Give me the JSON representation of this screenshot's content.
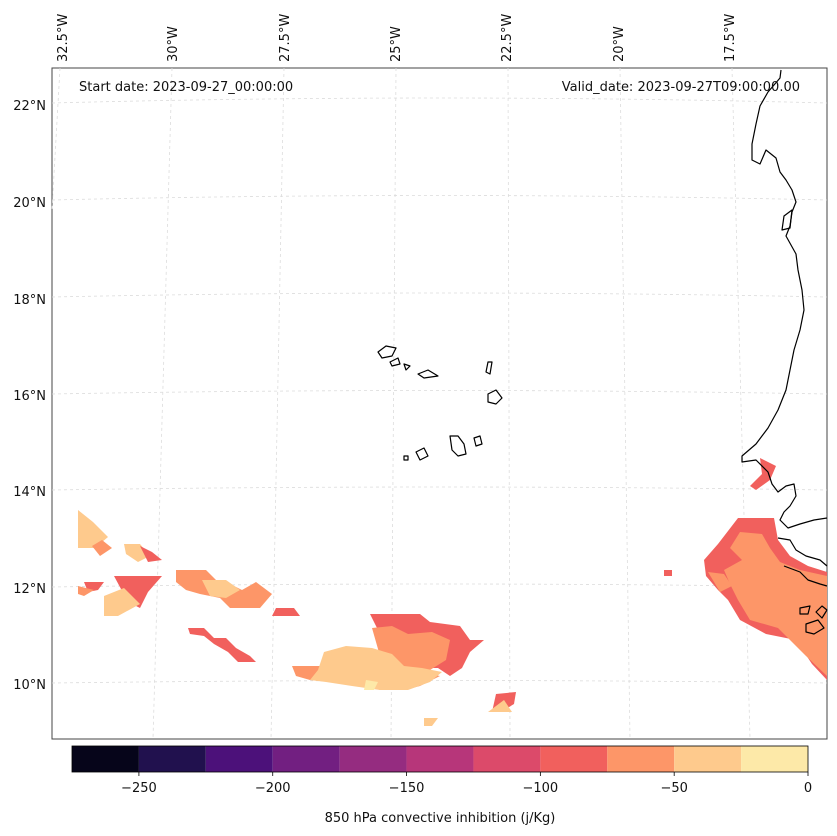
{
  "map": {
    "start_label": "Start date: 2023-09-27_00:00:00",
    "valid_label": "Valid_date: 2023-09-27T09:00:00.00",
    "lon_labels": [
      "32.5°W",
      "30°W",
      "27.5°W",
      "25°W",
      "22.5°W",
      "20°W",
      "17.5°W"
    ],
    "lat_labels": [
      "22°N",
      "20°N",
      "18°N",
      "16°N",
      "14°N",
      "12°N",
      "10°N"
    ],
    "coast_color": "#000000",
    "grid_color": "#d9d9d9"
  },
  "colorbar": {
    "title": "850 hPa convective inhibition (j/Kg)",
    "tick_labels": [
      "−250",
      "−200",
      "−150",
      "−100",
      "−50",
      "0"
    ],
    "tick_values": [
      -250,
      -200,
      -150,
      -100,
      -50,
      0
    ],
    "min": -275,
    "max": 0,
    "levels": [
      {
        "from": -275,
        "to": -250,
        "color": "#06051a"
      },
      {
        "from": -250,
        "to": -225,
        "color": "#21114e"
      },
      {
        "from": -225,
        "to": -200,
        "color": "#4c117a"
      },
      {
        "from": -200,
        "to": -175,
        "color": "#721f81"
      },
      {
        "from": -175,
        "to": -150,
        "color": "#952c80"
      },
      {
        "from": -150,
        "to": -125,
        "color": "#b7367a"
      },
      {
        "from": -125,
        "to": -100,
        "color": "#dc4a6a"
      },
      {
        "from": -100,
        "to": -75,
        "color": "#f1605d"
      },
      {
        "from": -75,
        "to": -50,
        "color": "#fd9668"
      },
      {
        "from": -50,
        "to": -25,
        "color": "#feca8d"
      },
      {
        "from": -25,
        "to": 0,
        "color": "#fde9a8"
      }
    ]
  }
}
